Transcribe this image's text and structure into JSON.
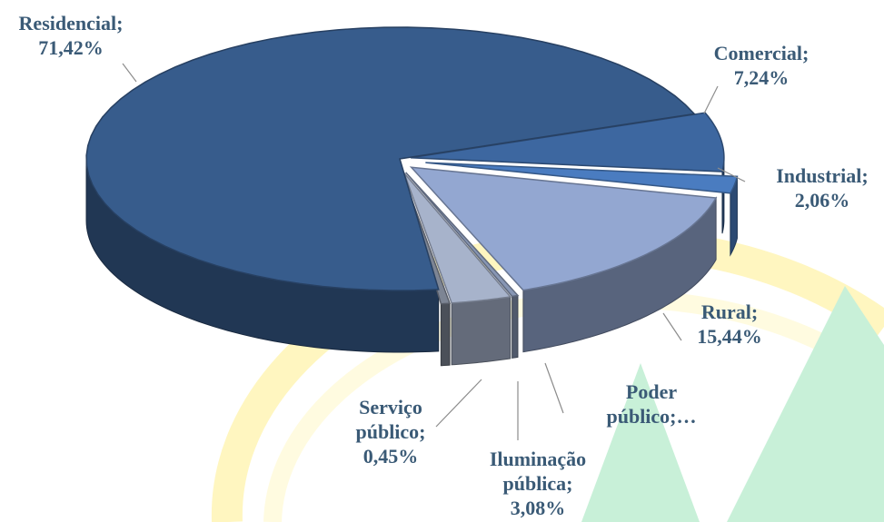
{
  "chart_data": {
    "type": "pie3d",
    "categories": [
      "Comercial;",
      "Industrial;",
      "Rural;",
      "Poder público;…",
      "Iluminação pública;",
      "Serviço público;",
      "Residencial;"
    ],
    "values": [
      7.24,
      2.06,
      15.44,
      0.31,
      3.08,
      0.45,
      71.42
    ],
    "value_labels": [
      "7,24%",
      "2,06%",
      "15,44%",
      null,
      "3,08%",
      "0,45%",
      "71,42%"
    ],
    "colors": [
      "#3d67a0",
      "#4a7cc0",
      "#93a7d1",
      "#8796b4",
      "#a7b3cb",
      "#7d8594",
      "#375c8c"
    ]
  }
}
